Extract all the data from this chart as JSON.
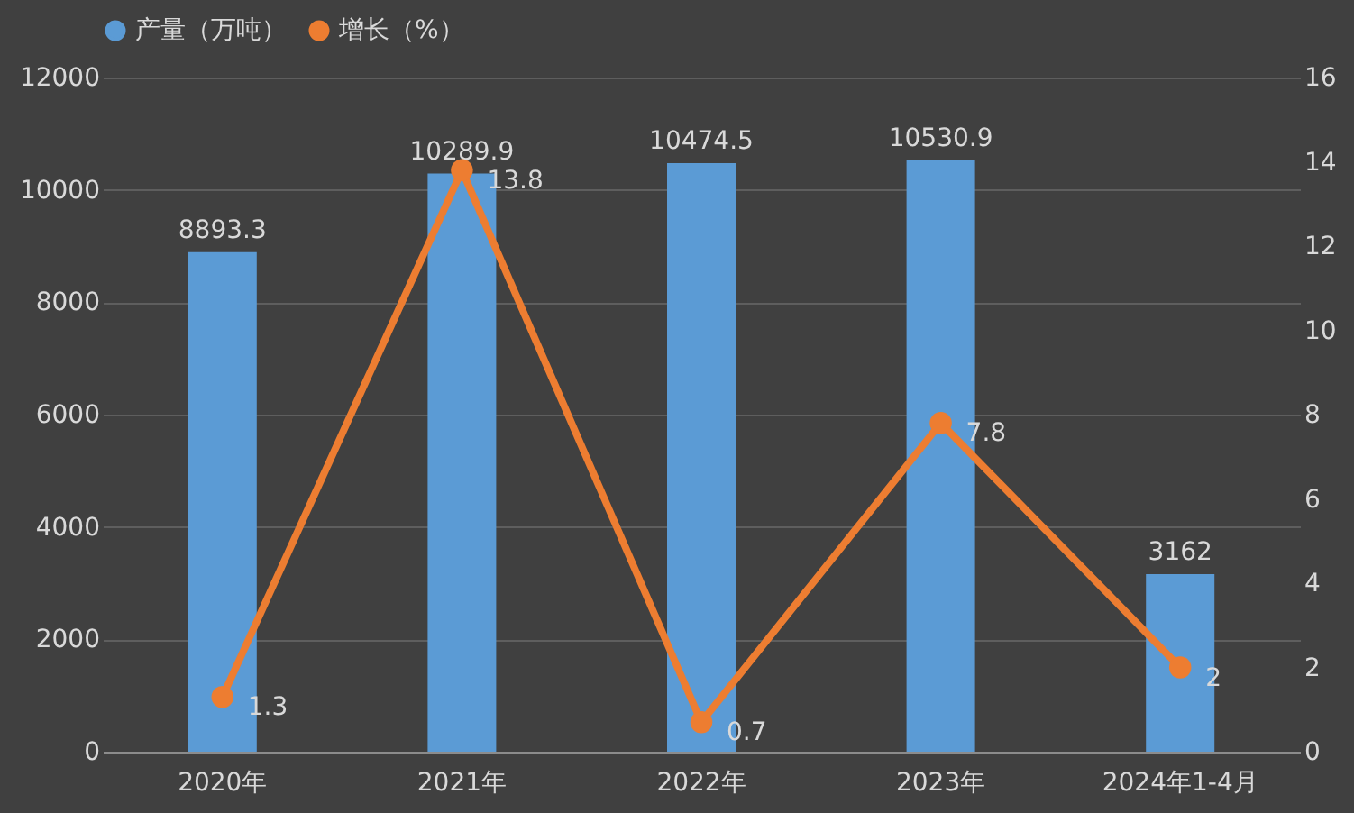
{
  "chart_data": {
    "type": "bar",
    "categories": [
      "2020年",
      "2021年",
      "2022年",
      "2023年",
      "2024年1-4月"
    ],
    "series": [
      {
        "name": "产量（万吨）",
        "color": "#5b9bd5",
        "values": [
          8893.3,
          10289.9,
          10474.5,
          10530.9,
          3162
        ]
      },
      {
        "name": "增长（%）",
        "type": "line",
        "axis": "y2",
        "color": "#ed7d31",
        "values": [
          1.3,
          13.8,
          0.7,
          7.8,
          2
        ]
      }
    ],
    "ylim": [
      0,
      12000
    ],
    "yticks": [
      0,
      2000,
      4000,
      6000,
      8000,
      10000,
      12000
    ],
    "y2lim": [
      0,
      16
    ],
    "y2ticks": [
      0,
      2,
      4,
      6,
      8,
      10,
      12,
      14,
      16
    ],
    "data_labels": true,
    "legend": "top",
    "grid": "y",
    "marker": "circle",
    "line_style": "solid"
  }
}
